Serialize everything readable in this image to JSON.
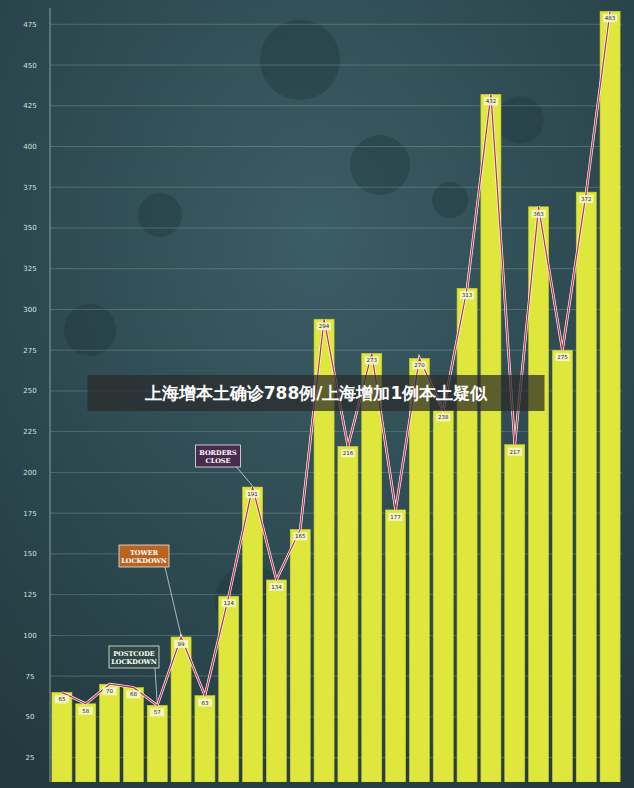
{
  "chart_data": {
    "type": "bar",
    "title": "上海增本土确诊788例/上海增加1例本土疑似",
    "categories": [
      null,
      null,
      null,
      null,
      null,
      null,
      null,
      null,
      null,
      null,
      null,
      null,
      null,
      null,
      null,
      null,
      null,
      null,
      null,
      null,
      null,
      null,
      null,
      null
    ],
    "values": [
      65,
      58,
      70,
      68,
      57,
      99,
      63,
      124,
      191,
      134,
      165,
      294,
      216,
      273,
      177,
      270,
      238,
      313,
      432,
      217,
      363,
      275,
      372,
      483
    ],
    "color": "#dfe63c",
    "ylim": [
      10,
      485
    ],
    "yticks": [
      25,
      50,
      75,
      100,
      125,
      150,
      175,
      200,
      225,
      250,
      275,
      300,
      325,
      350,
      375,
      400,
      425,
      450,
      475
    ],
    "grid": true,
    "data_labels": true,
    "tick_labels": "y",
    "annotations": [
      "POSTCODE LOCKDOWN",
      "TOWER LOCKDOWN",
      "BORDERS CLOSE"
    ]
  }
}
